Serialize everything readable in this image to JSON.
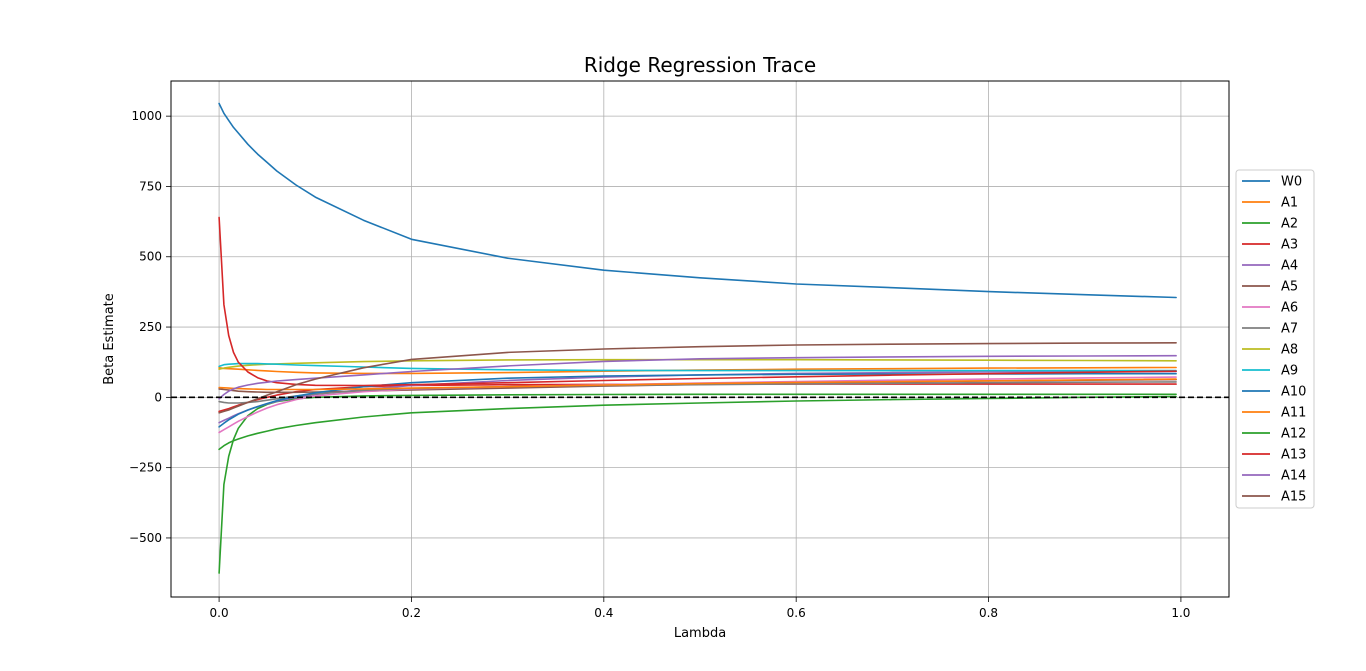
{
  "chart_data": {
    "type": "line",
    "title": "Ridge Regression Trace",
    "xlabel": "Lambda",
    "ylabel": "Beta Estimate",
    "xlim": [
      -0.05,
      1.05
    ],
    "ylim": [
      -710,
      1125
    ],
    "xticks": [
      0.0,
      0.2,
      0.4,
      0.6,
      0.8,
      1.0
    ],
    "xtick_labels": [
      "0.0",
      "0.2",
      "0.4",
      "0.6",
      "0.8",
      "1.0"
    ],
    "yticks": [
      -500,
      -250,
      0,
      250,
      500,
      750,
      1000
    ],
    "ytick_labels": [
      "−500",
      "−250",
      "0",
      "250",
      "500",
      "750",
      "1000"
    ],
    "grid": true,
    "legend_position": "right, outside plot area",
    "reference_line": {
      "y": 0,
      "style": "dashed",
      "color": "#000000"
    },
    "x": [
      0,
      0.005,
      0.01,
      0.015,
      0.02,
      0.03,
      0.04,
      0.05,
      0.06,
      0.08,
      0.1,
      0.15,
      0.2,
      0.3,
      0.4,
      0.5,
      0.6,
      0.7,
      0.8,
      0.9,
      0.995
    ],
    "series": [
      {
        "name": "W0",
        "color": "#1f77b4",
        "values": [
          1045,
          1010,
          985,
          960,
          940,
          900,
          865,
          835,
          805,
          755,
          712,
          630,
          562,
          495,
          452,
          425,
          403,
          390,
          376,
          365,
          355
        ]
      },
      {
        "name": "A1",
        "color": "#ff7f0e",
        "values": [
          105,
          103,
          102,
          101,
          100,
          98,
          96,
          94,
          92,
          89,
          87,
          85,
          85,
          88,
          93,
          97,
          100,
          102,
          104,
          105,
          106
        ]
      },
      {
        "name": "A2",
        "color": "#2ca02c",
        "values": [
          -625,
          -310,
          -210,
          -150,
          -110,
          -65,
          -40,
          -25,
          -15,
          -5,
          0,
          5,
          7,
          9,
          10,
          11,
          11,
          11,
          11,
          11,
          11
        ]
      },
      {
        "name": "A3",
        "color": "#d62728",
        "values": [
          -50,
          -45,
          -40,
          -34,
          -28,
          -18,
          -8,
          0,
          8,
          20,
          28,
          38,
          42,
          45,
          46,
          47,
          47,
          47,
          47,
          47,
          47
        ]
      },
      {
        "name": "A4",
        "color": "#9467bd",
        "values": [
          -90,
          -82,
          -74,
          -66,
          -58,
          -45,
          -33,
          -23,
          -14,
          0,
          10,
          28,
          42,
          60,
          72,
          80,
          85,
          88,
          90,
          91,
          92
        ]
      },
      {
        "name": "A5",
        "color": "#8c564b",
        "values": [
          30,
          28,
          26,
          24,
          22,
          20,
          19,
          18,
          18,
          18,
          19,
          22,
          26,
          33,
          40,
          46,
          51,
          55,
          58,
          61,
          63
        ]
      },
      {
        "name": "A6",
        "color": "#e377c2",
        "values": [
          -125,
          -115,
          -105,
          -95,
          -85,
          -68,
          -52,
          -38,
          -26,
          -8,
          5,
          20,
          30,
          38,
          45,
          51,
          56,
          61,
          65,
          69,
          72
        ]
      },
      {
        "name": "A7",
        "color": "#7f7f7f",
        "values": [
          -15,
          -18,
          -20,
          -20,
          -20,
          -18,
          -15,
          -10,
          -5,
          5,
          12,
          25,
          32,
          38,
          42,
          45,
          48,
          50,
          52,
          54,
          55
        ]
      },
      {
        "name": "A8",
        "color": "#bcbd22",
        "values": [
          100,
          104,
          107,
          109,
          111,
          114,
          116,
          118,
          119,
          121,
          123,
          127,
          130,
          133,
          134,
          134,
          134,
          133,
          132,
          131,
          130
        ]
      },
      {
        "name": "A9",
        "color": "#17becf",
        "values": [
          110,
          116,
          118,
          119,
          120,
          120,
          120,
          119,
          118,
          115,
          113,
          108,
          103,
          98,
          96,
          95,
          95,
          95,
          95,
          95,
          95
        ]
      },
      {
        "name": "A10",
        "color": "#1f77b4",
        "values": [
          -105,
          -92,
          -80,
          -70,
          -60,
          -45,
          -33,
          -22,
          -12,
          4,
          16,
          38,
          52,
          68,
          76,
          80,
          82,
          83,
          83,
          84,
          84
        ]
      },
      {
        "name": "A11",
        "color": "#ff7f0e",
        "values": [
          35,
          34,
          33,
          32,
          31,
          30,
          29,
          28,
          28,
          28,
          28,
          30,
          33,
          38,
          44,
          49,
          53,
          56,
          59,
          62,
          65
        ]
      },
      {
        "name": "A12",
        "color": "#2ca02c",
        "values": [
          -185,
          -172,
          -162,
          -154,
          -148,
          -137,
          -128,
          -120,
          -112,
          -100,
          -90,
          -70,
          -55,
          -40,
          -28,
          -20,
          -13,
          -8,
          -4,
          0,
          3
        ]
      },
      {
        "name": "A13",
        "color": "#d62728",
        "values": [
          640,
          330,
          220,
          160,
          125,
          90,
          70,
          58,
          52,
          46,
          43,
          42,
          45,
          52,
          60,
          67,
          73,
          79,
          84,
          89,
          93
        ]
      },
      {
        "name": "A14",
        "color": "#9467bd",
        "values": [
          -5,
          10,
          22,
          30,
          36,
          44,
          50,
          54,
          58,
          63,
          68,
          80,
          92,
          112,
          128,
          137,
          141,
          144,
          146,
          147,
          148
        ]
      },
      {
        "name": "A15",
        "color": "#8c564b",
        "values": [
          -55,
          -50,
          -45,
          -38,
          -31,
          -18,
          -5,
          8,
          20,
          45,
          65,
          105,
          135,
          160,
          172,
          180,
          186,
          189,
          191,
          193,
          194
        ]
      }
    ]
  }
}
